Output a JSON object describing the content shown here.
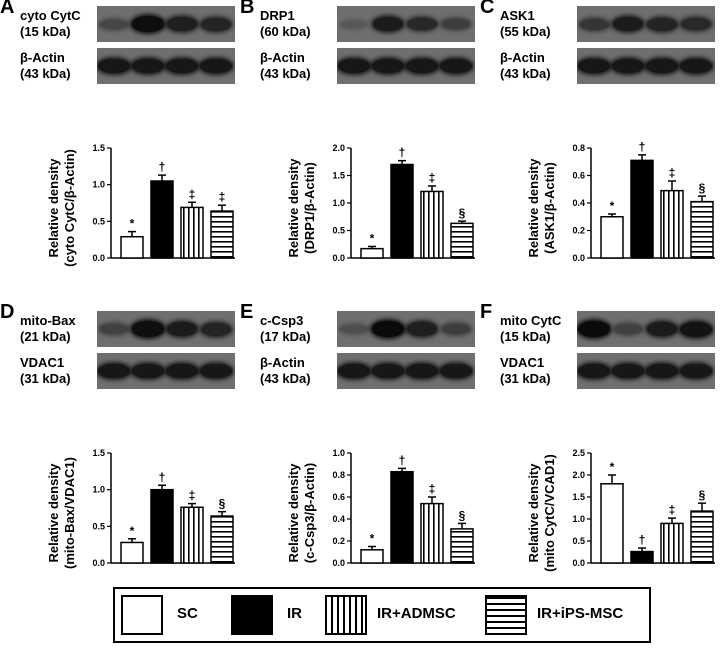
{
  "panels": [
    {
      "letter": "A",
      "blots": [
        {
          "label_line1": "cyto CytC",
          "label_line2": "(15 kDa)",
          "bands": [
            0.3,
            0.95,
            0.75,
            0.7
          ]
        },
        {
          "label_line1": "β-Actin",
          "label_line2": "(43 kDa)",
          "bands": [
            0.85,
            0.85,
            0.85,
            0.85
          ]
        }
      ],
      "ylabel_line1": "Relative density",
      "ylabel_line2": "(cyto CytC/β-Actin)"
    },
    {
      "letter": "B",
      "blots": [
        {
          "label_line1": "DRP1",
          "label_line2": "(60 kDa)",
          "bands": [
            0.1,
            0.8,
            0.65,
            0.4
          ]
        },
        {
          "label_line1": "β-Actin",
          "label_line2": "(43 kDa)",
          "bands": [
            0.85,
            0.85,
            0.85,
            0.85
          ]
        }
      ],
      "ylabel_line1": "Relative density",
      "ylabel_line2": "(DRP1/β-Actin)"
    },
    {
      "letter": "C",
      "blots": [
        {
          "label_line1": "ASK1",
          "label_line2": "(55 kDa)",
          "bands": [
            0.5,
            0.8,
            0.7,
            0.65
          ]
        },
        {
          "label_line1": "β-Actin",
          "label_line2": "(43 kDa)",
          "bands": [
            0.85,
            0.85,
            0.85,
            0.85
          ]
        }
      ],
      "ylabel_line1": "Relative density",
      "ylabel_line2": "(ASK1/β-Actin)"
    },
    {
      "letter": "D",
      "blots": [
        {
          "label_line1": "mito-Bax",
          "label_line2": "(21 kDa)",
          "bands": [
            0.35,
            0.95,
            0.8,
            0.7
          ]
        },
        {
          "label_line1": "VDAC1",
          "label_line2": "(31 kDa)",
          "bands": [
            0.85,
            0.85,
            0.85,
            0.85
          ]
        }
      ],
      "ylabel_line1": "Relative density",
      "ylabel_line2": "(mito-Bax/VDAC1)"
    },
    {
      "letter": "E",
      "blots": [
        {
          "label_line1": "c-Csp3",
          "label_line2": "(17 kDa)",
          "bands": [
            0.2,
            1.0,
            0.75,
            0.4
          ]
        },
        {
          "label_line1": "β-Actin",
          "label_line2": "(43 kDa)",
          "bands": [
            0.85,
            0.85,
            0.85,
            0.85
          ]
        }
      ],
      "ylabel_line1": "Relative density",
      "ylabel_line2": "(c-Csp3/β-Actin)"
    },
    {
      "letter": "F",
      "blots": [
        {
          "label_line1": "mito CytC",
          "label_line2": "(15 kDa)",
          "bands": [
            1.0,
            0.35,
            0.8,
            0.9
          ]
        },
        {
          "label_line1": "VDAC1",
          "label_line2": "(31 kDa)",
          "bands": [
            0.85,
            0.85,
            0.85,
            0.85
          ]
        }
      ],
      "ylabel_line1": "Relative density",
      "ylabel_line2": "(mito CytC/VCAD1)"
    }
  ],
  "legend": {
    "items": [
      {
        "label": "SC",
        "pattern": "open"
      },
      {
        "label": "IR",
        "pattern": "solid"
      },
      {
        "label": "IR+ADMSC",
        "pattern": "vertical"
      },
      {
        "label": "IR+iPS-MSC",
        "pattern": "horizontal"
      }
    ]
  },
  "chart_data": [
    {
      "type": "bar",
      "categories": [
        "SC",
        "IR",
        "IR+ADMSC",
        "IR+iPS-MSC"
      ],
      "series": [
        {
          "values": [
            0.29,
            1.05,
            0.69,
            0.64
          ]
        }
      ],
      "errors": [
        0.07,
        0.08,
        0.07,
        0.08
      ],
      "sig_labels": [
        "*",
        "†",
        "‡",
        "‡"
      ],
      "ylabel": "Relative density (cyto CytC/β-Actin)",
      "ylim": [
        0,
        1.5
      ],
      "yticks": [
        "0.0",
        "0.5",
        "1.0",
        "1.5"
      ]
    },
    {
      "type": "bar",
      "categories": [
        "SC",
        "IR",
        "IR+ADMSC",
        "IR+iPS-MSC"
      ],
      "series": [
        {
          "values": [
            0.17,
            1.7,
            1.21,
            0.63
          ]
        }
      ],
      "errors": [
        0.04,
        0.07,
        0.1,
        0.04
      ],
      "sig_labels": [
        "*",
        "†",
        "‡",
        "§"
      ],
      "ylabel": "Relative density (DRP1/β-Actin)",
      "ylim": [
        0,
        2.0
      ],
      "yticks": [
        "0.0",
        "0.5",
        "1.0",
        "1.5",
        "2.0"
      ]
    },
    {
      "type": "bar",
      "categories": [
        "SC",
        "IR",
        "IR+ADMSC",
        "IR+iPS-MSC"
      ],
      "series": [
        {
          "values": [
            0.3,
            0.71,
            0.49,
            0.41
          ]
        }
      ],
      "errors": [
        0.02,
        0.04,
        0.07,
        0.04
      ],
      "sig_labels": [
        "*",
        "†",
        "‡",
        "§"
      ],
      "ylabel": "Relative density (ASK1/β-Actin)",
      "ylim": [
        0,
        0.8
      ],
      "yticks": [
        "0.0",
        "0.2",
        "0.4",
        "0.6",
        "0.8"
      ]
    },
    {
      "type": "bar",
      "categories": [
        "SC",
        "IR",
        "IR+ADMSC",
        "IR+iPS-MSC"
      ],
      "series": [
        {
          "values": [
            0.28,
            1.0,
            0.76,
            0.64
          ]
        }
      ],
      "errors": [
        0.05,
        0.06,
        0.05,
        0.06
      ],
      "sig_labels": [
        "*",
        "†",
        "‡",
        "§"
      ],
      "ylabel": "Relative density (mito-Bax/VDAC1)",
      "ylim": [
        0,
        1.5
      ],
      "yticks": [
        "0.0",
        "0.5",
        "1.0",
        "1.5"
      ]
    },
    {
      "type": "bar",
      "categories": [
        "SC",
        "IR",
        "IR+ADMSC",
        "IR+iPS-MSC"
      ],
      "series": [
        {
          "values": [
            0.12,
            0.83,
            0.54,
            0.31
          ]
        }
      ],
      "errors": [
        0.03,
        0.03,
        0.06,
        0.05
      ],
      "sig_labels": [
        "*",
        "†",
        "‡",
        "§"
      ],
      "ylabel": "Relative density (c-Csp3/β-Actin)",
      "ylim": [
        0,
        1.0
      ],
      "yticks": [
        "0.0",
        "0.2",
        "0.4",
        "0.6",
        "0.8",
        "1.0"
      ]
    },
    {
      "type": "bar",
      "categories": [
        "SC",
        "IR",
        "IR+ADMSC",
        "IR+iPS-MSC"
      ],
      "series": [
        {
          "values": [
            1.8,
            0.26,
            0.9,
            1.18
          ]
        }
      ],
      "errors": [
        0.2,
        0.08,
        0.12,
        0.18
      ],
      "sig_labels": [
        "*",
        "†",
        "‡",
        "§"
      ],
      "ylabel": "Relative density (mito CytC/VCAD1)",
      "ylim": [
        0,
        2.5
      ],
      "yticks": [
        "0.0",
        "0.5",
        "1.0",
        "1.5",
        "2.0",
        "2.5"
      ]
    }
  ]
}
